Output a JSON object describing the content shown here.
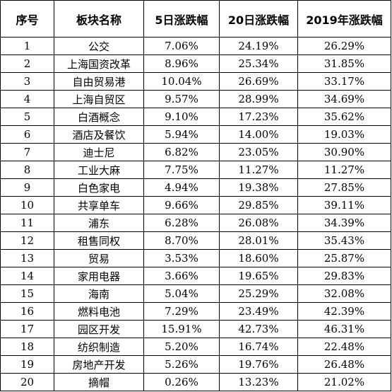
{
  "table": {
    "headers": [
      "序号",
      "板块名称",
      "5日涨跌幅",
      "20日涨跌幅",
      "2019年涨跌幅"
    ],
    "rows": [
      [
        "1",
        "公交",
        "7.06%",
        "24.19%",
        "26.29%"
      ],
      [
        "2",
        "上海国资改革",
        "8.96%",
        "25.34%",
        "31.85%"
      ],
      [
        "3",
        "自由贸易港",
        "10.04%",
        "26.69%",
        "33.17%"
      ],
      [
        "4",
        "上海自贸区",
        "9.57%",
        "28.99%",
        "34.69%"
      ],
      [
        "5",
        "白酒概念",
        "9.10%",
        "17.23%",
        "35.62%"
      ],
      [
        "6",
        "酒店及餐饮",
        "5.94%",
        "14.00%",
        "19.03%"
      ],
      [
        "7",
        "迪士尼",
        "6.82%",
        "23.05%",
        "30.90%"
      ],
      [
        "8",
        "工业大麻",
        "7.75%",
        "11.27%",
        "11.27%"
      ],
      [
        "9",
        "白色家电",
        "4.94%",
        "19.38%",
        "27.85%"
      ],
      [
        "10",
        "共享单车",
        "9.66%",
        "29.85%",
        "39.11%"
      ],
      [
        "11",
        "浦东",
        "6.28%",
        "26.08%",
        "34.39%"
      ],
      [
        "12",
        "租售同权",
        "8.70%",
        "28.01%",
        "35.43%"
      ],
      [
        "13",
        "贸易",
        "3.53%",
        "18.60%",
        "25.87%"
      ],
      [
        "14",
        "家用电器",
        "3.66%",
        "19.65%",
        "29.83%"
      ],
      [
        "15",
        "海南",
        "5.04%",
        "25.29%",
        "32.08%"
      ],
      [
        "16",
        "燃料电池",
        "7.29%",
        "23.49%",
        "42.39%"
      ],
      [
        "17",
        "园区开发",
        "15.91%",
        "42.73%",
        "46.31%"
      ],
      [
        "18",
        "纺织制造",
        "5.20%",
        "16.74%",
        "22.48%"
      ],
      [
        "19",
        "房地产开发",
        "5.26%",
        "19.76%",
        "26.48%"
      ],
      [
        "20",
        "摘帽",
        "0.26%",
        "13.23%",
        "21.02%"
      ]
    ]
  }
}
